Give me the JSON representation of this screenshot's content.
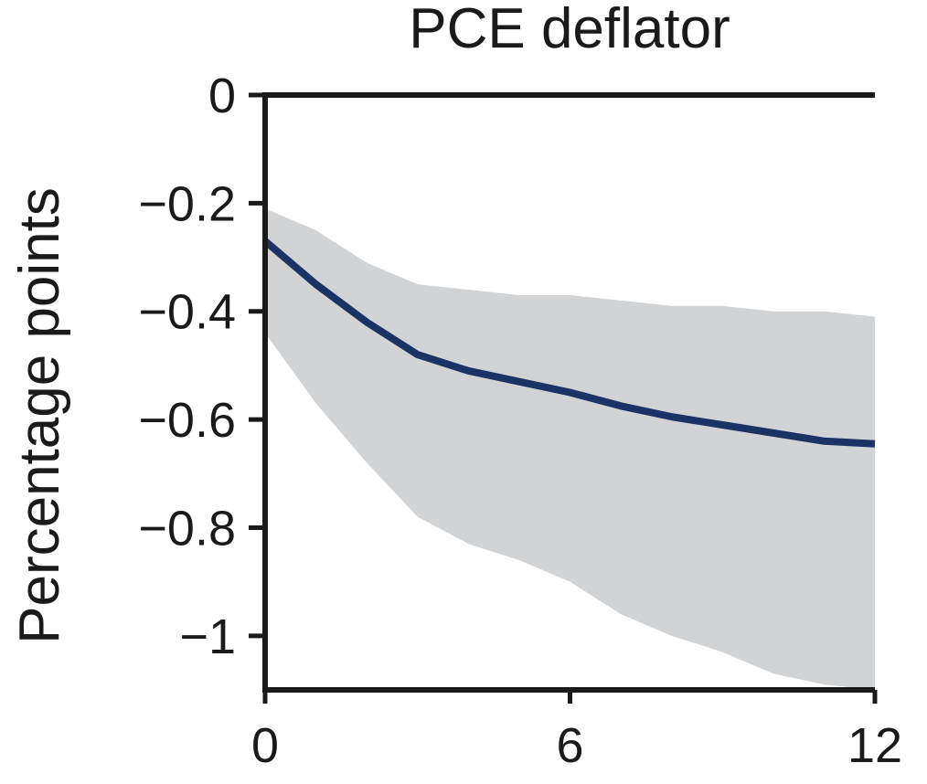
{
  "chart_data": {
    "type": "line",
    "title": "PCE deflator",
    "xlabel": "",
    "ylabel": "Percentage points",
    "xlim": [
      0,
      12
    ],
    "ylim": [
      -1.1,
      0
    ],
    "grid": false,
    "x_ticks": [
      {
        "value": 0,
        "label": "0"
      },
      {
        "value": 6,
        "label": "6"
      },
      {
        "value": 12,
        "label": "12"
      }
    ],
    "y_ticks": [
      {
        "value": 0,
        "label": "0"
      },
      {
        "value": -0.2,
        "label": "−0.2"
      },
      {
        "value": -0.4,
        "label": "−0.4"
      },
      {
        "value": -0.6,
        "label": "−0.6"
      },
      {
        "value": -0.8,
        "label": "−0.8"
      },
      {
        "value": -1,
        "label": "−1"
      }
    ],
    "x": [
      0,
      1,
      2,
      3,
      4,
      5,
      6,
      7,
      8,
      9,
      10,
      11,
      12
    ],
    "series": [
      {
        "values": [
          -0.27,
          -0.35,
          -0.42,
          -0.48,
          -0.51,
          -0.53,
          -0.55,
          -0.575,
          -0.595,
          -0.61,
          -0.625,
          -0.64,
          -0.645
        ],
        "color": "#1b3264"
      }
    ],
    "band": {
      "upper": [
        -0.21,
        -0.25,
        -0.31,
        -0.35,
        -0.36,
        -0.37,
        -0.37,
        -0.38,
        -0.39,
        -0.39,
        -0.4,
        -0.4,
        -0.41
      ],
      "lower": [
        -0.44,
        -0.57,
        -0.68,
        -0.78,
        -0.83,
        -0.86,
        -0.9,
        -0.96,
        -1.0,
        -1.03,
        -1.07,
        -1.09,
        -1.1
      ],
      "color": "#d1d3d5"
    },
    "axis_color": "#1a1a1a"
  }
}
